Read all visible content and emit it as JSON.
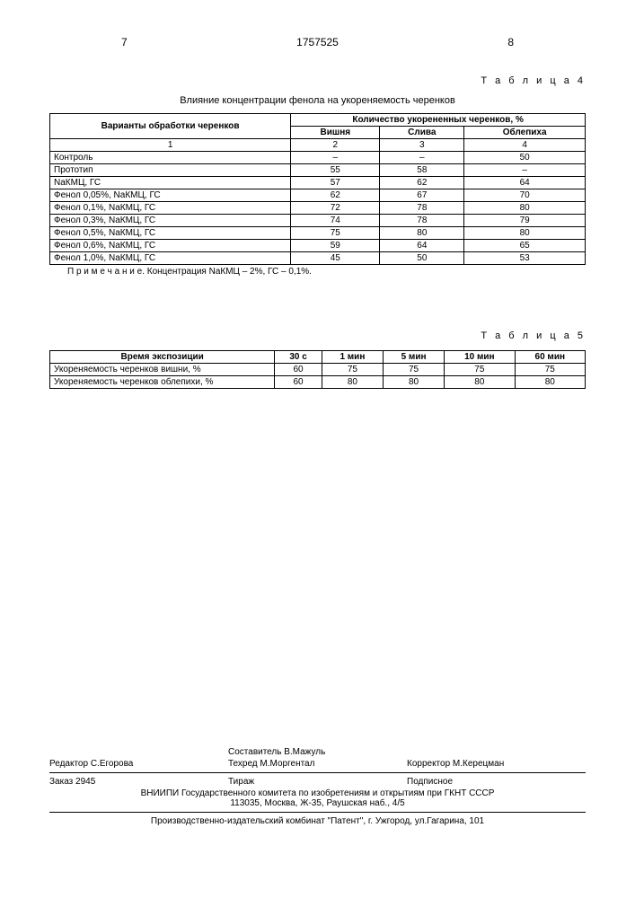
{
  "header": {
    "page_left": "7",
    "doc_number": "1757525",
    "page_right": "8"
  },
  "table4": {
    "label": "Т а б л и ц а  4",
    "caption": "Влияние концентрации фенола на укореняемость черенков",
    "col_variant": "Варианты обработки черенков",
    "col_group": "Количество укорененных черенков, %",
    "sub1": "Вишня",
    "sub2": "Слива",
    "sub3": "Облепиха",
    "num1": "1",
    "num2": "2",
    "num3": "3",
    "num4": "4",
    "rows": [
      {
        "v": "Контроль",
        "c1": "–",
        "c2": "–",
        "c3": "50"
      },
      {
        "v": "Прототип",
        "c1": "55",
        "c2": "58",
        "c3": "–"
      },
      {
        "v": "NaКМЦ, ГС",
        "c1": "57",
        "c2": "62",
        "c3": "64"
      },
      {
        "v": "Фенол 0,05%, NaКМЦ, ГС",
        "c1": "62",
        "c2": "67",
        "c3": "70"
      },
      {
        "v": "Фенол 0,1%, NaКМЦ, ГС",
        "c1": "72",
        "c2": "78",
        "c3": "80"
      },
      {
        "v": "Фенол 0,3%, NaКМЦ, ГС",
        "c1": "74",
        "c2": "78",
        "c3": "79"
      },
      {
        "v": "Фенол 0,5%, NaКМЦ, ГС",
        "c1": "75",
        "c2": "80",
        "c3": "80"
      },
      {
        "v": "Фенол 0,6%, NaКМЦ, ГС",
        "c1": "59",
        "c2": "64",
        "c3": "65"
      },
      {
        "v": "Фенол 1,0%, NaКМЦ, ГС",
        "c1": "45",
        "c2": "50",
        "c3": "53"
      }
    ],
    "note": "П р и м е ч а н и е. Концентрация NaКМЦ – 2%, ГС – 0,1%."
  },
  "table5": {
    "label": "Т а б л и ц а  5",
    "col_time": "Время экспозиции",
    "times": [
      "30 с",
      "1 мин",
      "5 мин",
      "10 мин",
      "60 мин"
    ],
    "row1": {
      "label": "Укореняемость черенков вишни, %",
      "vals": [
        "60",
        "75",
        "75",
        "75",
        "75"
      ]
    },
    "row2": {
      "label": "Укореняемость черенков облепихи, %",
      "vals": [
        "60",
        "80",
        "80",
        "80",
        "80"
      ]
    }
  },
  "footer": {
    "sostavitel": "Составитель  В.Мажуль",
    "redaktor": "Редактор  С.Егорова",
    "techred": "Техред  М.Моргентал",
    "korrektor": "Корректор  М.Керецман",
    "zakaz": "Заказ  2945",
    "tirazh": "Тираж",
    "podpisnoe": "Подписное",
    "org1": "ВНИИПИ Государственного комитета по изобретениям и открытиям при ГКНТ СССР",
    "org2": "113035, Москва, Ж-35, Раушская наб., 4/5",
    "prod": "Производственно-издательский комбинат \"Патент\", г. Ужгород, ул.Гагарина, 101"
  }
}
